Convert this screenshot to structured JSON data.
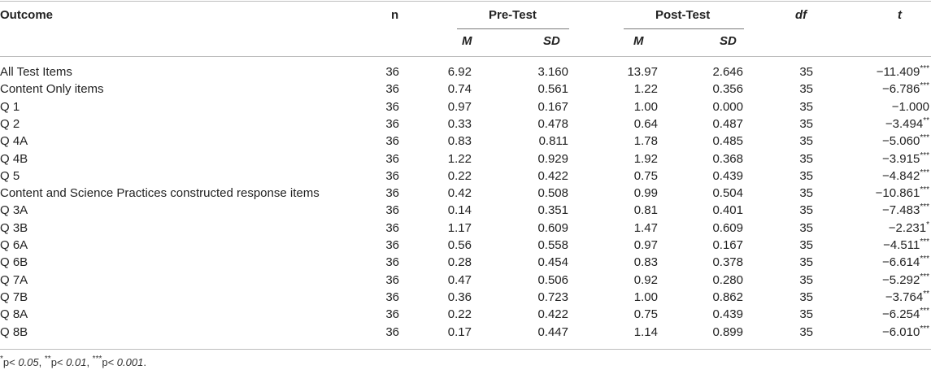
{
  "header": {
    "outcome": "Outcome",
    "n": "n",
    "pre_test": "Pre-Test",
    "post_test": "Post-Test",
    "df": "df",
    "t": "t",
    "m": "M",
    "sd": "SD"
  },
  "rows": [
    {
      "outcome": "All Test Items",
      "n": "36",
      "pre_m": "6.92",
      "pre_sd": "3.160",
      "post_m": "13.97",
      "post_sd": "2.646",
      "df": "35",
      "t": "−11.409",
      "sig": "***"
    },
    {
      "outcome": "Content Only items",
      "n": "36",
      "pre_m": "0.74",
      "pre_sd": "0.561",
      "post_m": "1.22",
      "post_sd": "0.356",
      "df": "35",
      "t": "−6.786",
      "sig": "***"
    },
    {
      "outcome": "Q 1",
      "n": "36",
      "pre_m": "0.97",
      "pre_sd": "0.167",
      "post_m": "1.00",
      "post_sd": "0.000",
      "df": "35",
      "t": "−1.000",
      "sig": ""
    },
    {
      "outcome": "Q 2",
      "n": "36",
      "pre_m": "0.33",
      "pre_sd": "0.478",
      "post_m": "0.64",
      "post_sd": "0.487",
      "df": "35",
      "t": "−3.494",
      "sig": "**"
    },
    {
      "outcome": "Q 4A",
      "n": "36",
      "pre_m": "0.83",
      "pre_sd": "0.811",
      "post_m": "1.78",
      "post_sd": "0.485",
      "df": "35",
      "t": "−5.060",
      "sig": "***"
    },
    {
      "outcome": "Q 4B",
      "n": "36",
      "pre_m": "1.22",
      "pre_sd": "0.929",
      "post_m": "1.92",
      "post_sd": "0.368",
      "df": "35",
      "t": "−3.915",
      "sig": "***"
    },
    {
      "outcome": "Q 5",
      "n": "36",
      "pre_m": "0.22",
      "pre_sd": "0.422",
      "post_m": "0.75",
      "post_sd": "0.439",
      "df": "35",
      "t": "−4.842",
      "sig": "***"
    },
    {
      "outcome": "Content and Science Practices constructed response items",
      "n": "36",
      "pre_m": "0.42",
      "pre_sd": "0.508",
      "post_m": "0.99",
      "post_sd": "0.504",
      "df": "35",
      "t": "−10.861",
      "sig": "***"
    },
    {
      "outcome": "Q 3A",
      "n": "36",
      "pre_m": "0.14",
      "pre_sd": "0.351",
      "post_m": "0.81",
      "post_sd": "0.401",
      "df": "35",
      "t": "−7.483",
      "sig": "***"
    },
    {
      "outcome": "Q 3B",
      "n": "36",
      "pre_m": "1.17",
      "pre_sd": "0.609",
      "post_m": "1.47",
      "post_sd": "0.609",
      "df": "35",
      "t": "−2.231",
      "sig": "*"
    },
    {
      "outcome": "Q 6A",
      "n": "36",
      "pre_m": "0.56",
      "pre_sd": "0.558",
      "post_m": "0.97",
      "post_sd": "0.167",
      "df": "35",
      "t": "−4.511",
      "sig": "***"
    },
    {
      "outcome": "Q 6B",
      "n": "36",
      "pre_m": "0.28",
      "pre_sd": "0.454",
      "post_m": "0.83",
      "post_sd": "0.378",
      "df": "35",
      "t": "−6.614",
      "sig": "***"
    },
    {
      "outcome": "Q 7A",
      "n": "36",
      "pre_m": "0.47",
      "pre_sd": "0.506",
      "post_m": "0.92",
      "post_sd": "0.280",
      "df": "35",
      "t": "−5.292",
      "sig": "***"
    },
    {
      "outcome": "Q 7B",
      "n": "36",
      "pre_m": "0.36",
      "pre_sd": "0.723",
      "post_m": "1.00",
      "post_sd": "0.862",
      "df": "35",
      "t": "−3.764",
      "sig": "**"
    },
    {
      "outcome": "Q 8A",
      "n": "36",
      "pre_m": "0.22",
      "pre_sd": "0.422",
      "post_m": "0.75",
      "post_sd": "0.439",
      "df": "35",
      "t": "−6.254",
      "sig": "***"
    },
    {
      "outcome": "Q 8B",
      "n": "36",
      "pre_m": "0.17",
      "pre_sd": "0.447",
      "post_m": "1.14",
      "post_sd": "0.899",
      "df": "35",
      "t": "−6.010",
      "sig": "***"
    }
  ],
  "footnote": {
    "s1": "*",
    "t1": "p< ",
    "v1": "0.05",
    "c1": ", ",
    "s2": "**",
    "t2": "p< ",
    "v2": "0.01",
    "c2": ", ",
    "s3": "***",
    "t3": "p< ",
    "v3": "0.001",
    "end": "."
  }
}
